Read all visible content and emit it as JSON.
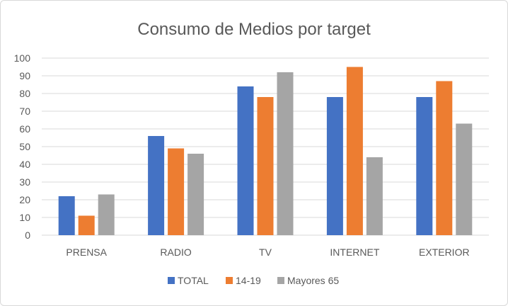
{
  "chart_data": {
    "type": "bar",
    "title": "Consumo de Medios por target",
    "categories": [
      "PRENSA",
      "RADIO",
      "TV",
      "INTERNET",
      "EXTERIOR"
    ],
    "series": [
      {
        "name": "TOTAL",
        "color": "#4472c4",
        "values": [
          22,
          56,
          84,
          78,
          78
        ]
      },
      {
        "name": "14-19",
        "color": "#ed7d31",
        "values": [
          11,
          49,
          78,
          95,
          87
        ]
      },
      {
        "name": "Mayores 65",
        "color": "#a5a5a5",
        "values": [
          23,
          46,
          92,
          44,
          63
        ]
      }
    ],
    "ylim": [
      0,
      100
    ],
    "yticks": [
      0,
      10,
      20,
      30,
      40,
      50,
      60,
      70,
      80,
      90,
      100
    ],
    "grid": true,
    "legend_position": "bottom",
    "gridline_color": "#d9d9d9"
  }
}
